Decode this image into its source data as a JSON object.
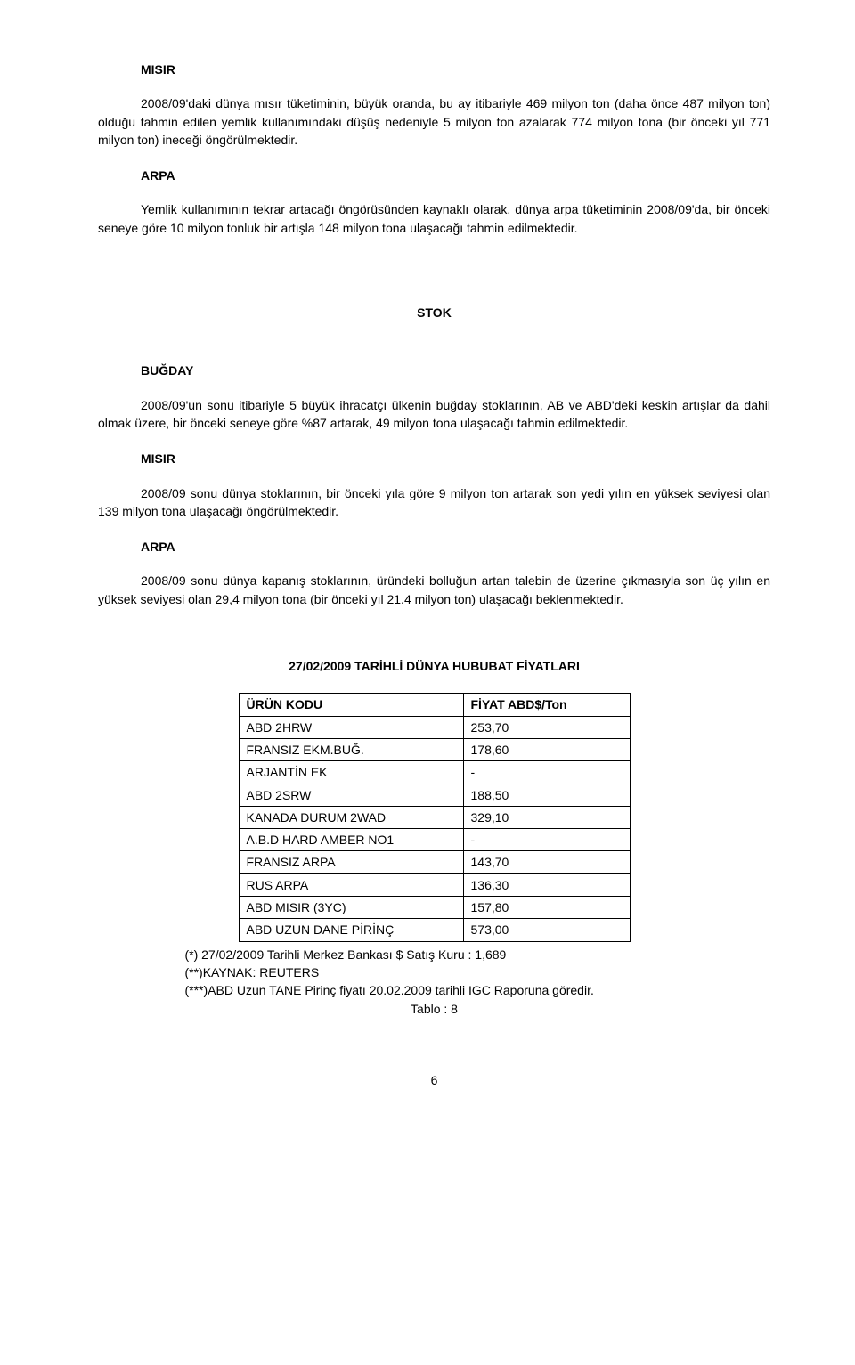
{
  "headings": {
    "misir": "MISIR",
    "arpa": "ARPA",
    "bugday": "BUĞDAY",
    "stok": "STOK"
  },
  "paragraphs": {
    "misir1": "2008/09'daki dünya mısır tüketiminin, büyük oranda, bu ay itibariyle 469 milyon ton (daha önce 487 milyon ton) olduğu tahmin edilen yemlik kullanımındaki düşüş nedeniyle 5 milyon ton azalarak 774 milyon tona (bir önceki yıl 771 milyon ton) ineceği öngörülmektedir.",
    "arpa1": "Yemlik kullanımının tekrar artacağı öngörüsünden kaynaklı olarak, dünya arpa tüketiminin 2008/09'da, bir önceki seneye göre 10 milyon tonluk bir artışla 148 milyon tona ulaşacağı tahmin edilmektedir.",
    "bugday1": "2008/09'un sonu itibariyle 5 büyük ihracatçı ülkenin buğday stoklarının, AB ve ABD'deki keskin artışlar da dahil olmak üzere, bir önceki seneye göre %87 artarak,  49 milyon tona ulaşacağı tahmin edilmektedir.",
    "misir2": "2008/09 sonu dünya stoklarının, bir önceki yıla göre 9 milyon ton artarak son yedi yılın en yüksek seviyesi olan 139 milyon tona ulaşacağı öngörülmektedir.",
    "arpa2": "2008/09 sonu dünya kapanış stoklarının, üründeki bolluğun artan talebin de üzerine çıkmasıyla son üç yılın en yüksek seviyesi olan 29,4 milyon tona (bir önceki yıl 21.4 milyon ton) ulaşacağı beklenmektedir."
  },
  "table": {
    "title": "27/02/2009 TARİHLİ DÜNYA HUBUBAT FİYATLARI",
    "headers": {
      "code": "ÜRÜN KODU",
      "price": "FİYAT ABD$/Ton"
    },
    "rows": [
      {
        "code": "ABD 2HRW",
        "price": "253,70"
      },
      {
        "code": "FRANSIZ EKM.BUĞ.",
        "price": "178,60"
      },
      {
        "code": "ARJANTİN EK",
        "price": "-"
      },
      {
        "code": "ABD  2SRW",
        "price": "188,50"
      },
      {
        "code": "KANADA DURUM 2WAD",
        "price": "329,10"
      },
      {
        "code": "A.B.D HARD AMBER NO1",
        "price": "-"
      },
      {
        "code": "FRANSIZ ARPA",
        "price": "143,70"
      },
      {
        "code": "RUS ARPA",
        "price": "136,30"
      },
      {
        "code": "ABD MISIR (3YC)",
        "price": "157,80"
      },
      {
        "code": "ABD UZUN DANE PİRİNÇ",
        "price": "573,00"
      }
    ],
    "footnotes": {
      "f1": "(*) 27/02/2009 Tarihli Merkez Bankası $ Satış Kuru : 1,689",
      "f2": "(**)KAYNAK: REUTERS",
      "f3": "(***)ABD Uzun TANE Pirinç fiyatı 20.02.2009 tarihli IGC Raporuna göredir.",
      "tablo": "Tablo : 8"
    }
  },
  "page_number": "6"
}
